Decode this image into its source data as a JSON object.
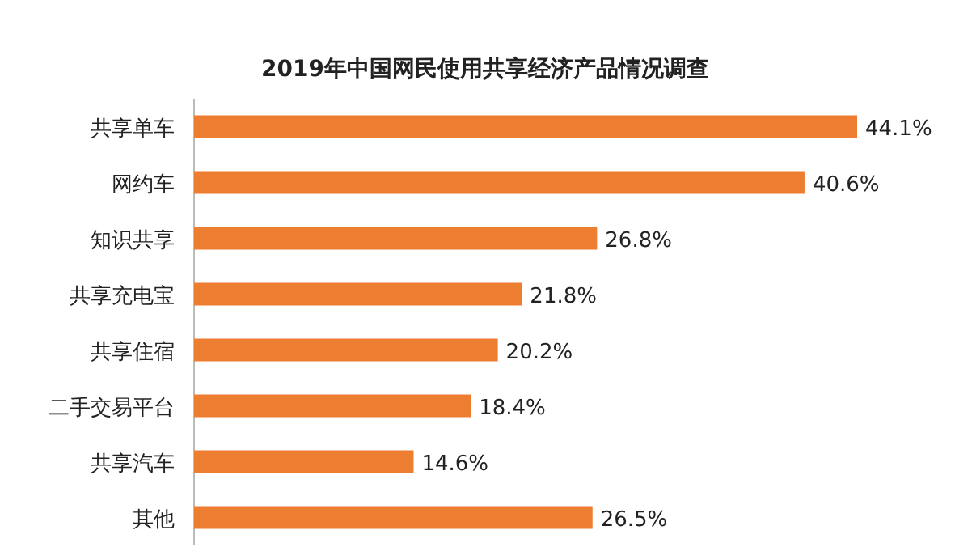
{
  "chart_data": {
    "type": "bar",
    "orientation": "horizontal",
    "title": "2019年中国网民使用共享经济产品情况调查",
    "categories": [
      "共享单车",
      "网约车",
      "知识共享",
      "共享充电宝",
      "共享住宿",
      "二手交易平台",
      "共享汽车",
      "其他"
    ],
    "values": [
      44.1,
      40.6,
      26.8,
      21.8,
      20.2,
      18.4,
      14.6,
      26.5
    ],
    "value_labels": [
      "44.1%",
      "40.6%",
      "26.8%",
      "21.8%",
      "20.2%",
      "18.4%",
      "14.6%",
      "26.5%"
    ],
    "color": "#ed7d31"
  }
}
